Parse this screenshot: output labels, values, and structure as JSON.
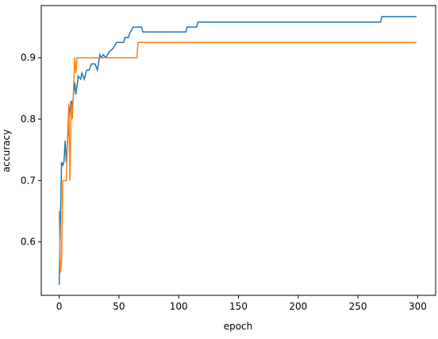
{
  "chart_data": {
    "type": "line",
    "x_label": "epoch",
    "y_label": "accuracy",
    "series": [
      {
        "color": "#1f77b4",
        "x": [
          0,
          2,
          3,
          4,
          5,
          6,
          8,
          10,
          11,
          13,
          14,
          16,
          18,
          19,
          21,
          23,
          25,
          27,
          30,
          32,
          34,
          35,
          37,
          39,
          42,
          45,
          48,
          54,
          55,
          58,
          59,
          62,
          69,
          70,
          106,
          107,
          115,
          116,
          269,
          270,
          299
        ],
        "values": [
          0.53,
          0.73,
          0.725,
          0.73,
          0.765,
          0.73,
          0.8,
          0.83,
          0.82,
          0.86,
          0.84,
          0.87,
          0.865,
          0.875,
          0.865,
          0.88,
          0.88,
          0.89,
          0.89,
          0.88,
          0.905,
          0.9,
          0.905,
          0.9,
          0.91,
          0.915,
          0.925,
          0.925,
          0.933,
          0.933,
          0.94,
          0.95,
          0.95,
          0.942,
          0.942,
          0.95,
          0.95,
          0.958,
          0.958,
          0.967,
          0.967
        ]
      },
      {
        "color": "#ff7f0e",
        "x": [
          0,
          1,
          2,
          3,
          6,
          7,
          8,
          9,
          10,
          11,
          12,
          13,
          14,
          15,
          65,
          66,
          299
        ],
        "values": [
          0.65,
          0.55,
          0.57,
          0.7,
          0.7,
          0.77,
          0.825,
          0.7,
          0.825,
          0.8,
          0.85,
          0.9,
          0.875,
          0.9,
          0.9,
          0.925,
          0.925
        ]
      }
    ],
    "xlim": [
      -15,
      315
    ],
    "ylim": [
      0.513,
      0.985
    ],
    "xticks": [
      0,
      50,
      100,
      150,
      200,
      250,
      300
    ],
    "yticks": [
      0.6,
      0.7,
      0.8,
      0.9
    ]
  }
}
